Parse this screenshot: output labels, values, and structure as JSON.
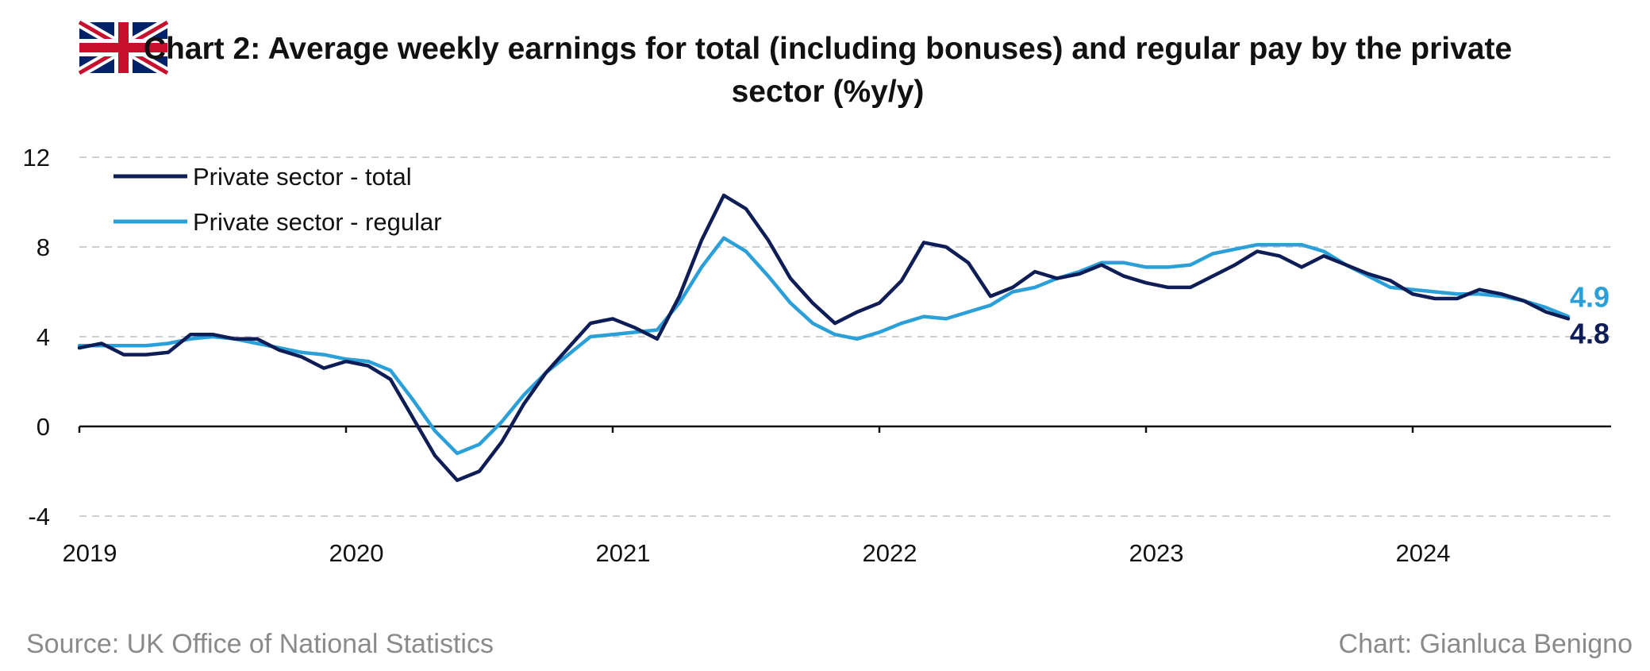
{
  "title_line1": "Chart 2: Average weekly earnings for total (including bonuses) and regular pay by the private",
  "title_line2": "sector (%y/y)",
  "flag_icon": "uk-flag-icon",
  "source": "Source: UK Office of National Statistics",
  "credit": "Chart: Gianluca Benigno",
  "colors": {
    "total": "#0f1d57",
    "regular": "#2a9fd8",
    "grid": "#cfcfcf",
    "axis": "#111111"
  },
  "chart_data": {
    "type": "line",
    "title": "Chart 2: Average weekly earnings for total (including bonuses) and regular pay by the private sector (%y/y)",
    "xlabel": "",
    "ylabel": "",
    "x_start": "2019-01",
    "x_tick_labels": [
      "2019",
      "2020",
      "2021",
      "2022",
      "2023",
      "2024"
    ],
    "y_ticks": [
      "12",
      "8",
      "4",
      "0",
      "-4"
    ],
    "ylim": [
      -4,
      12
    ],
    "grid": true,
    "legend_position": "top-left",
    "series": [
      {
        "name": "Private sector - total",
        "color": "#0f1d57",
        "end_label": "4.8",
        "values": [
          3.5,
          3.7,
          3.2,
          3.2,
          3.3,
          4.1,
          4.1,
          3.9,
          3.9,
          3.4,
          3.1,
          2.6,
          2.9,
          2.7,
          2.1,
          0.4,
          -1.3,
          -2.4,
          -2.0,
          -0.7,
          1.0,
          2.4,
          3.5,
          4.6,
          4.8,
          4.4,
          3.9,
          5.8,
          8.3,
          10.3,
          9.7,
          8.3,
          6.6,
          5.5,
          4.6,
          5.1,
          5.5,
          6.5,
          8.2,
          8.0,
          7.3,
          5.8,
          6.2,
          6.9,
          6.6,
          6.8,
          7.2,
          6.7,
          6.4,
          6.2,
          6.2,
          6.7,
          7.2,
          7.8,
          7.6,
          7.1,
          7.6,
          7.2,
          6.8,
          6.5,
          5.9,
          5.7,
          5.7,
          6.1,
          5.9,
          5.6,
          5.1,
          4.8
        ]
      },
      {
        "name": "Private sector - regular",
        "color": "#2a9fd8",
        "end_label": "4.9",
        "values": [
          3.6,
          3.6,
          3.6,
          3.6,
          3.7,
          3.9,
          4.0,
          3.9,
          3.7,
          3.5,
          3.3,
          3.2,
          3.0,
          2.9,
          2.5,
          1.2,
          -0.2,
          -1.2,
          -0.8,
          0.2,
          1.4,
          2.4,
          3.2,
          4.0,
          4.1,
          4.2,
          4.3,
          5.5,
          7.1,
          8.4,
          7.8,
          6.7,
          5.5,
          4.6,
          4.1,
          3.9,
          4.2,
          4.6,
          4.9,
          4.8,
          5.1,
          5.4,
          6.0,
          6.2,
          6.6,
          6.9,
          7.3,
          7.3,
          7.1,
          7.1,
          7.2,
          7.7,
          7.9,
          8.1,
          8.1,
          8.1,
          7.8,
          7.2,
          6.7,
          6.2,
          6.1,
          6.0,
          5.9,
          5.9,
          5.8,
          5.6,
          5.3,
          4.9
        ]
      }
    ]
  }
}
